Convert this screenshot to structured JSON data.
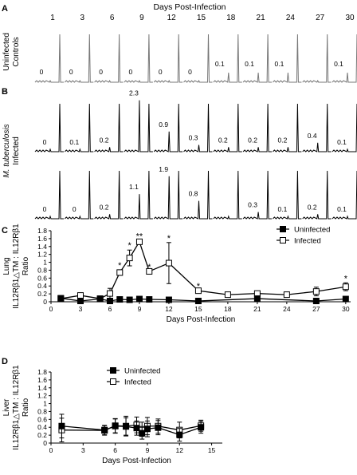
{
  "panelA": {
    "letter": "A",
    "title": "Days Post-Infection",
    "days": [
      "1",
      "3",
      "6",
      "9",
      "12",
      "15",
      "18",
      "21",
      "24",
      "27",
      "30"
    ],
    "rowLabel": [
      "Uninfected",
      "Controls"
    ],
    "values": [
      "0",
      "0",
      "0",
      "0",
      "0",
      "0",
      "0.1",
      "0.1",
      "0.1",
      "",
      "0.1"
    ]
  },
  "panelB": {
    "letter": "B",
    "rowLabelItalic": "M. tuberculosis",
    "rowLabel": "Infected",
    "row1Values": [
      "0",
      "0.1",
      "0.2",
      "2.3",
      "0.9",
      "0.3",
      "0.2",
      "0.2",
      "0.2",
      "0.4",
      "0.1"
    ],
    "row2Values": [
      "0",
      "0",
      "0.2",
      "1.1",
      "1.9",
      "0.8",
      "",
      "0.3",
      "0.1",
      "0.2",
      "0.1"
    ]
  },
  "chart_data": [
    {
      "panel": "C",
      "type": "line",
      "organ": "Lung",
      "ylabel": [
        "IL12Rβ1△TM : IL12Rβ1",
        "Ratio"
      ],
      "xlabel": "Days Post-Infection",
      "xticks": [
        0,
        3,
        6,
        9,
        12,
        15,
        18,
        21,
        24,
        27,
        30
      ],
      "yticks": [
        "0",
        "0.2",
        "0.4",
        "0.6",
        "0.8",
        "1",
        "1.2",
        "1.4",
        "1.6",
        "1.8"
      ],
      "xlim": [
        0,
        30.5
      ],
      "ylim": [
        0,
        1.8
      ],
      "legend": [
        "Uninfected",
        "Infected"
      ],
      "series": [
        {
          "name": "Uninfected",
          "marker": "filled-square",
          "points": [
            {
              "x": 1,
              "y": 0.09,
              "err": 0.0
            },
            {
              "x": 3,
              "y": 0.02,
              "err": 0.0
            },
            {
              "x": 5,
              "y": 0.07,
              "err": 0.0
            },
            {
              "x": 6,
              "y": 0.02,
              "err": 0.02
            },
            {
              "x": 7,
              "y": 0.06,
              "err": 0.03
            },
            {
              "x": 8,
              "y": 0.05,
              "err": 0.03
            },
            {
              "x": 9,
              "y": 0.07,
              "err": 0.0
            },
            {
              "x": 10,
              "y": 0.06,
              "err": 0.0
            },
            {
              "x": 12,
              "y": 0.05,
              "err": 0.0
            },
            {
              "x": 15,
              "y": 0.02,
              "err": 0.0
            },
            {
              "x": 21,
              "y": 0.08,
              "err": 0.0
            },
            {
              "x": 27,
              "y": 0.02,
              "err": 0.0
            },
            {
              "x": 30,
              "y": 0.07,
              "err": 0.0
            }
          ]
        },
        {
          "name": "Infected",
          "marker": "open-square",
          "points": [
            {
              "x": 1,
              "y": 0.08,
              "err": 0.0
            },
            {
              "x": 3,
              "y": 0.16,
              "err": 0.06
            },
            {
              "x": 5,
              "y": 0.08,
              "err": 0.0
            },
            {
              "x": 6,
              "y": 0.21,
              "err": 0.13
            },
            {
              "x": 7,
              "y": 0.74,
              "err": 0.07
            },
            {
              "x": 8,
              "y": 1.11,
              "err": 0.2
            },
            {
              "x": 9,
              "y": 1.52,
              "err": 0.03
            },
            {
              "x": 10,
              "y": 0.77,
              "err": 0.0
            },
            {
              "x": 12,
              "y": 0.98,
              "err": 0.52
            },
            {
              "x": 15,
              "y": 0.28,
              "err": 0.0
            },
            {
              "x": 18,
              "y": 0.18,
              "err": 0.0
            },
            {
              "x": 21,
              "y": 0.21,
              "err": 0.0
            },
            {
              "x": 24,
              "y": 0.18,
              "err": 0.0
            },
            {
              "x": 27,
              "y": 0.26,
              "err": 0.11
            },
            {
              "x": 30,
              "y": 0.38,
              "err": 0.1
            }
          ]
        }
      ],
      "annotations": [
        {
          "x": 7,
          "y": 0.74,
          "text": "*"
        },
        {
          "x": 8,
          "y": 1.11,
          "text": "*"
        },
        {
          "x": 9,
          "y": 1.52,
          "text": "**"
        },
        {
          "x": 10,
          "y": 0.77,
          "text": "*"
        },
        {
          "x": 12,
          "y": 0.98,
          "text": "*"
        },
        {
          "x": 15,
          "y": 0.28,
          "text": "*"
        },
        {
          "x": 30,
          "y": 0.38,
          "text": "*"
        }
      ]
    },
    {
      "panel": "D",
      "type": "line",
      "organ": "Liver",
      "ylabel": [
        "IL12Rβ1△TM : IL12Rβ1",
        "Ratio"
      ],
      "xlabel": "Days Post-Infection",
      "xticks": [
        0,
        3,
        6,
        9,
        12,
        15
      ],
      "yticks": [
        "0",
        "0.2",
        "0.4",
        "0.6",
        "0.8",
        "1",
        "1.2",
        "1.4",
        "1.6",
        "1.8"
      ],
      "xlim": [
        0,
        16
      ],
      "ylim": [
        0,
        1.8
      ],
      "legend": [
        "Uninfected",
        "Infected"
      ],
      "series": [
        {
          "name": "Uninfected",
          "marker": "filled-square",
          "points": [
            {
              "x": 1,
              "y": 0.43,
              "err": 0.3
            },
            {
              "x": 5,
              "y": 0.33,
              "err": 0.12
            },
            {
              "x": 6,
              "y": 0.43,
              "err": 0.18
            },
            {
              "x": 7,
              "y": 0.42,
              "err": 0.22
            },
            {
              "x": 8,
              "y": 0.38,
              "err": 0.18
            },
            {
              "x": 8.5,
              "y": 0.25,
              "err": 0.15
            },
            {
              "x": 9,
              "y": 0.36,
              "err": 0.2
            },
            {
              "x": 10,
              "y": 0.39,
              "err": 0.18
            },
            {
              "x": 12,
              "y": 0.21,
              "err": 0.16
            },
            {
              "x": 14,
              "y": 0.4,
              "err": 0.15
            }
          ]
        },
        {
          "name": "Infected",
          "marker": "open-square",
          "points": [
            {
              "x": 1,
              "y": 0.33,
              "err": 0.3
            },
            {
              "x": 5,
              "y": 0.32,
              "err": 0.12
            },
            {
              "x": 6,
              "y": 0.44,
              "err": 0.18
            },
            {
              "x": 7,
              "y": 0.43,
              "err": 0.25
            },
            {
              "x": 8,
              "y": 0.46,
              "err": 0.2
            },
            {
              "x": 8.5,
              "y": 0.35,
              "err": 0.18
            },
            {
              "x": 9,
              "y": 0.43,
              "err": 0.22
            },
            {
              "x": 10,
              "y": 0.43,
              "err": 0.18
            },
            {
              "x": 12,
              "y": 0.33,
              "err": 0.2
            },
            {
              "x": 14,
              "y": 0.44,
              "err": 0.14
            }
          ]
        }
      ]
    }
  ]
}
